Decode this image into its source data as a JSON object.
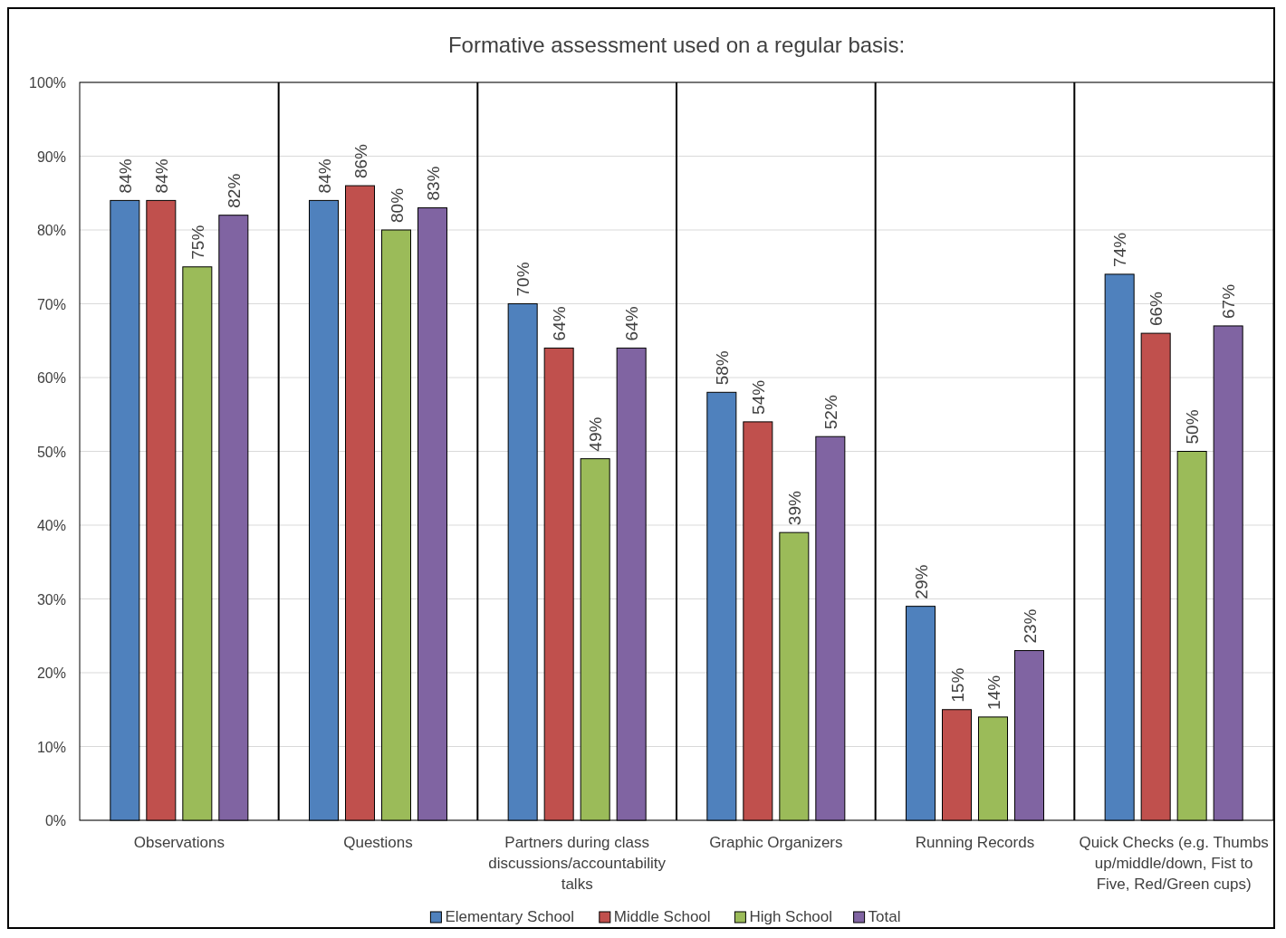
{
  "chart_data": {
    "type": "bar",
    "title": "Formative assessment used on a regular basis:",
    "categories": [
      "Observations",
      "Questions",
      "Partners during class discussions/accountability talks",
      "Graphic Organizers",
      "Running Records",
      "Quick Checks (e.g. Thumbs up/middle/down, Fist to Five, Red/Green cups)"
    ],
    "series": [
      {
        "name": "Elementary School",
        "color": "#4f81bd",
        "values": [
          84,
          84,
          70,
          58,
          29,
          74
        ],
        "value_labels": [
          "84%",
          "84%",
          "70%",
          "58%",
          "29%",
          "74%"
        ]
      },
      {
        "name": "Middle School",
        "color": "#c0504d",
        "values": [
          84,
          86,
          64,
          54,
          15,
          66
        ],
        "value_labels": [
          "84%",
          "86%",
          "64%",
          "54%",
          "15%",
          "66%"
        ]
      },
      {
        "name": "High School",
        "color": "#9bbb59",
        "values": [
          75,
          80,
          49,
          39,
          14,
          50
        ],
        "value_labels": [
          "75%",
          "80%",
          "49%",
          "39%",
          "14%",
          "50%"
        ]
      },
      {
        "name": "Total",
        "color": "#8064a2",
        "values": [
          82,
          83,
          64,
          52,
          23,
          67
        ],
        "value_labels": [
          "82%",
          "83%",
          "64%",
          "52%",
          "23%",
          "67%"
        ]
      }
    ],
    "ylim": [
      0,
      100
    ],
    "yticks": [
      {
        "value": 0,
        "label": "0%"
      },
      {
        "value": 10,
        "label": "10%"
      },
      {
        "value": 20,
        "label": "20%"
      },
      {
        "value": 30,
        "label": "30%"
      },
      {
        "value": 40,
        "label": "40%"
      },
      {
        "value": 50,
        "label": "50%"
      },
      {
        "value": 60,
        "label": "60%"
      },
      {
        "value": 70,
        "label": "70%"
      },
      {
        "value": 80,
        "label": "80%"
      },
      {
        "value": 90,
        "label": "90%"
      },
      {
        "value": 100,
        "label": "100%"
      }
    ],
    "grid": true,
    "legend": "bottom"
  }
}
